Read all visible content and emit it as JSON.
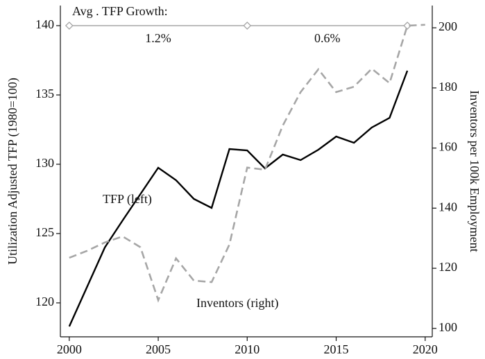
{
  "chart_data": {
    "type": "line",
    "x": [
      2000,
      2001,
      2002,
      2003,
      2004,
      2005,
      2006,
      2007,
      2008,
      2009,
      2010,
      2011,
      2012,
      2013,
      2014,
      2015,
      2016,
      2017,
      2018,
      2019,
      2020
    ],
    "series": [
      {
        "name": "TFP (left)",
        "color": "#000000",
        "dash": false,
        "values": [
          118.3,
          121.15,
          124.0,
          125.95,
          127.85,
          129.75,
          128.85,
          127.5,
          126.85,
          131.1,
          131.0,
          129.7,
          130.7,
          130.3,
          131.05,
          132.0,
          131.55,
          132.65,
          133.35,
          136.75,
          null
        ]
      },
      {
        "name": "Inventors (right)",
        "color": "#a6a6a6",
        "dash": true,
        "axis": "y2",
        "values": [
          123.5,
          125.8,
          128.6,
          130.6,
          127.0,
          109.4,
          123.3,
          115.9,
          115.4,
          127.9,
          153.5,
          152.8,
          167.5,
          178.6,
          186.2,
          178.6,
          180.4,
          186.4,
          181.6,
          200.7,
          201.0
        ]
      }
    ],
    "reference": {
      "label": "Avg . TFP Growth:",
      "value": 140,
      "x": [
        2000,
        2010,
        2019
      ],
      "color": "#a6a6a6",
      "periods": [
        {
          "x": 2005,
          "label": "1.2%"
        },
        {
          "x": 2014.5,
          "label": "0.6%"
        }
      ]
    },
    "ylabel": "Utilization Adjusted TFP (1980=100)",
    "y2label": "Inventors per 100k Employment",
    "xlim": [
      1999.5,
      2020.4
    ],
    "xticks": [
      2000,
      2005,
      2010,
      2015,
      2020
    ],
    "ylim": [
      117.55,
      141.45
    ],
    "yticks": [
      120,
      125,
      130,
      135,
      140
    ],
    "y2lim": [
      97.2,
      207.4
    ],
    "y2ticks": [
      100,
      120,
      140,
      160,
      180,
      200
    ]
  }
}
